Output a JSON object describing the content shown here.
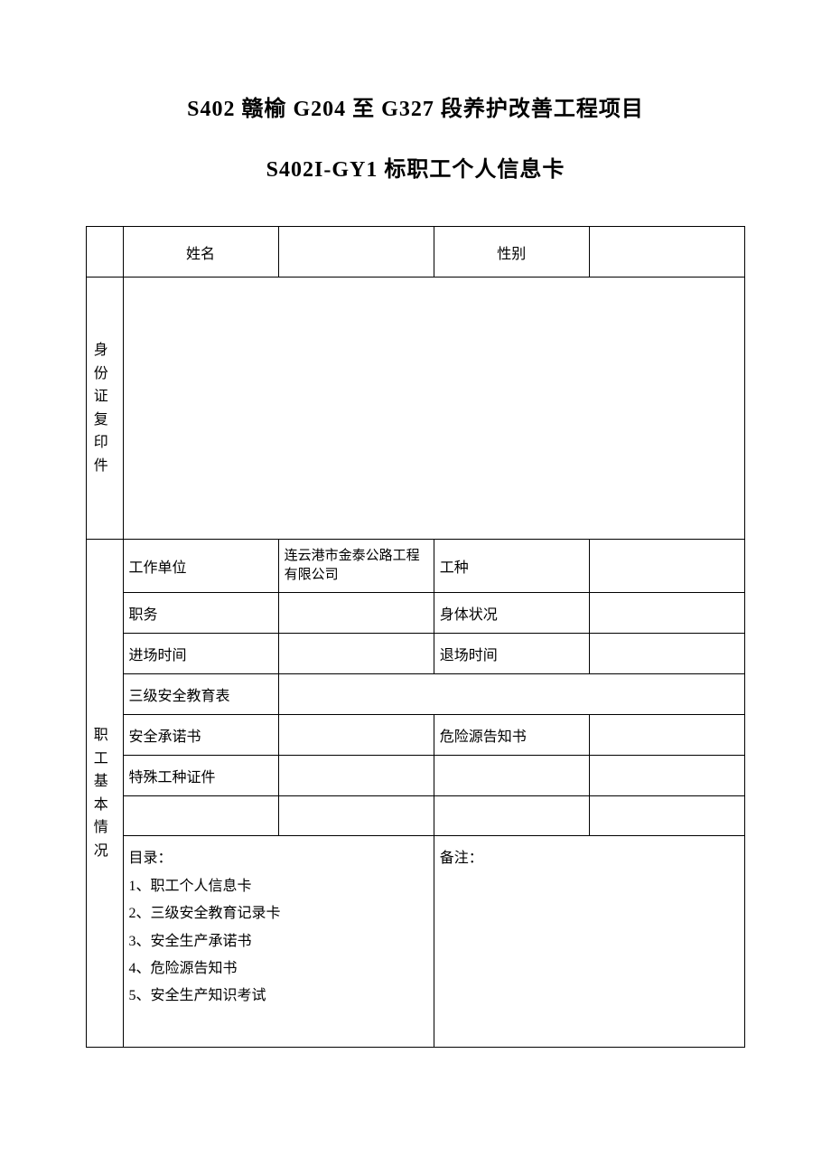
{
  "title": {
    "line1": "S402 赣榆 G204 至 G327 段养护改善工程项目",
    "line2": "S402I-GY1 标职工个人信息卡"
  },
  "headerRow": {
    "nameLabel": "姓名",
    "nameValue": "",
    "genderLabel": "性别",
    "genderValue": ""
  },
  "idPhoto": {
    "label_l1": "身 份",
    "label_l2": "证 复",
    "label_l3": "印件"
  },
  "basicInfo": {
    "sectionLabel_l1": "职 工",
    "sectionLabel_l2": "基 本",
    "sectionLabel_l3": "情况",
    "rows": {
      "workUnit": {
        "label": "工作单位",
        "value": "连云港市金泰公路工程有限公司"
      },
      "jobType": {
        "label": "工种",
        "value": ""
      },
      "position": {
        "label": "职务",
        "value": ""
      },
      "health": {
        "label": "身体状况",
        "value": ""
      },
      "enter": {
        "label": "进场时间",
        "value": ""
      },
      "exit": {
        "label": "退场时间",
        "value": ""
      },
      "safetyEdu": {
        "label": "三级安全教育表",
        "value": ""
      },
      "pledge": {
        "label": "安全承诺书",
        "value": ""
      },
      "hazard": {
        "label": "危险源告知书",
        "value": ""
      },
      "special": {
        "label": "特殊工种证件",
        "value": ""
      }
    },
    "catalog": {
      "header": "目录：",
      "items": [
        "1、职工个人信息卡",
        "2、三级安全教育记录卡",
        "3、安全生产承诺书",
        "4、危险源告知书",
        "5、安全生产知识考试"
      ],
      "notesLabel": "备注：",
      "notesValue": ""
    }
  },
  "colors": {
    "border": "#000000",
    "text": "#000000",
    "background": "#ffffff"
  }
}
